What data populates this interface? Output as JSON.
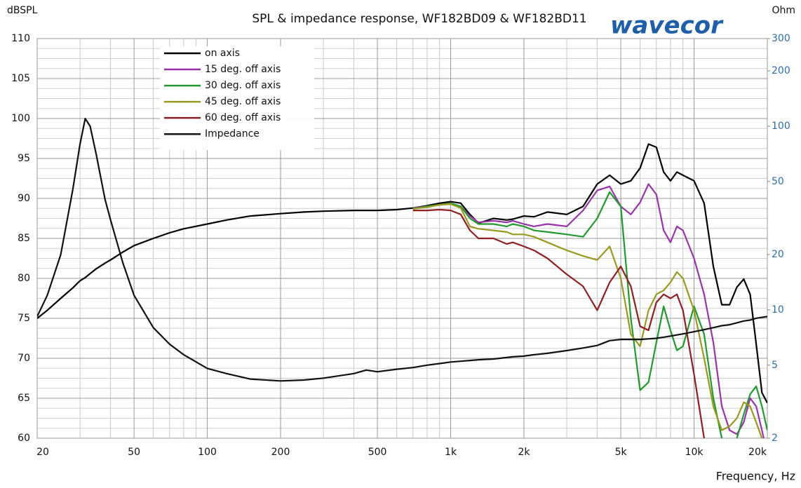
{
  "logo": "wavecor",
  "chart_data": {
    "type": "line",
    "title": "SPL & impedance response, WF182BD09 & WF182BD11",
    "ylabel": "dBSPL",
    "y2label": "Ohm",
    "xlabel": "Frequency, Hz",
    "xlog": true,
    "y2log": true,
    "grid": true,
    "legend": "upper-left",
    "xlim": [
      20,
      20000
    ],
    "xticks": [
      20,
      50,
      100,
      200,
      500,
      {
        "value": 1000,
        "label": "1k"
      },
      {
        "value": 2000,
        "label": "2k"
      },
      {
        "value": 5000,
        "label": "5k"
      },
      {
        "value": 10000,
        "label": "10k"
      },
      {
        "value": 20000,
        "label": "20k"
      }
    ],
    "xminorticks": [
      30,
      40,
      60,
      70,
      80,
      90,
      300,
      400,
      600,
      700,
      800,
      900,
      3000,
      4000,
      6000,
      7000,
      8000,
      9000
    ],
    "ylim": [
      60,
      110
    ],
    "yticks": [
      60,
      65,
      70,
      75,
      80,
      85,
      90,
      95,
      100,
      105,
      110
    ],
    "yminorticks": [
      61.25,
      62.5,
      63.75,
      66.25,
      67.5,
      68.75,
      71.25,
      72.5,
      73.75,
      76.25,
      77.5,
      78.75,
      81.25,
      82.5,
      83.75,
      86.25,
      87.5,
      88.75,
      91.25,
      92.5,
      93.75,
      96.25,
      97.5,
      98.75,
      101.25,
      102.5,
      103.75,
      106.25,
      107.5,
      108.75
    ],
    "y2lim": [
      2,
      300
    ],
    "y2ticks": [
      2,
      5,
      10,
      20,
      50,
      100,
      200,
      300
    ],
    "x": [
      20,
      22,
      25,
      28,
      30,
      31.5,
      33,
      35,
      38,
      40,
      45,
      50,
      60,
      70,
      80,
      100,
      120,
      150,
      200,
      250,
      300,
      400,
      450,
      500,
      600,
      700,
      800,
      900,
      1000,
      1100,
      1200,
      1300,
      1500,
      1700,
      1800,
      2000,
      2200,
      2500,
      3000,
      3500,
      4000,
      4500,
      5000,
      5500,
      6000,
      6500,
      7000,
      7500,
      8000,
      8500,
      9000,
      10000,
      11000,
      12000,
      13000,
      14000,
      15000,
      16000,
      17000,
      18000,
      19000,
      20000
    ],
    "series": [
      {
        "name": "on axis",
        "color": "#000000",
        "values": [
          75,
          76,
          77.5,
          78.8,
          79.7,
          80.1,
          80.6,
          81.2,
          81.9,
          82.3,
          83.3,
          84.1,
          85,
          85.7,
          86.2,
          86.8,
          87.3,
          87.8,
          88.1,
          88.3,
          88.4,
          88.5,
          88.5,
          88.5,
          88.6,
          88.8,
          89.1,
          89.4,
          89.6,
          89.4,
          88,
          86.9,
          87.5,
          87.3,
          87.4,
          87.8,
          87.7,
          88.3,
          88,
          89,
          91.8,
          92.9,
          91.8,
          92.2,
          93.8,
          96.8,
          96.4,
          93.3,
          92.2,
          93.3,
          92.9,
          92.2,
          89.4,
          81.5,
          76.7,
          76.7,
          78.9,
          79.9,
          78,
          71.8,
          65.7,
          64.4
        ]
      },
      {
        "name": "15 deg. off axis",
        "color": "#9933aa",
        "values": [
          null,
          null,
          null,
          null,
          null,
          null,
          null,
          null,
          null,
          null,
          null,
          null,
          null,
          null,
          null,
          null,
          null,
          null,
          null,
          null,
          null,
          null,
          null,
          null,
          null,
          88.8,
          89.0,
          89.2,
          89.3,
          89.0,
          87.8,
          87.0,
          87.2,
          87.0,
          87.2,
          86.8,
          86.5,
          86.8,
          86.5,
          88.5,
          91.0,
          91.5,
          89,
          88,
          89.5,
          91.8,
          90.5,
          86,
          84.5,
          86.5,
          86,
          82.5,
          78,
          72,
          64,
          61,
          60.5,
          62,
          65,
          64,
          61,
          58
        ]
      },
      {
        "name": "30 deg. off axis",
        "color": "#22992e",
        "values": [
          null,
          null,
          null,
          null,
          null,
          null,
          null,
          null,
          null,
          null,
          null,
          null,
          null,
          null,
          null,
          null,
          null,
          null,
          null,
          null,
          null,
          null,
          null,
          null,
          null,
          88.7,
          89,
          89.2,
          89.4,
          89,
          87.5,
          86.8,
          86.8,
          86.5,
          86.8,
          86.5,
          86,
          85.8,
          85.5,
          85.2,
          87.5,
          90.8,
          89,
          75,
          66,
          67,
          72,
          76.5,
          73.5,
          71,
          71.5,
          76.5,
          73,
          65,
          60,
          58,
          60,
          63,
          65.5,
          66.5,
          64,
          61
        ]
      },
      {
        "name": "45 deg. off axis",
        "color": "#999922",
        "values": [
          null,
          null,
          null,
          null,
          null,
          null,
          null,
          null,
          null,
          null,
          null,
          null,
          null,
          null,
          null,
          null,
          null,
          null,
          null,
          null,
          null,
          null,
          null,
          null,
          null,
          88.7,
          88.9,
          89.2,
          89.3,
          88.8,
          86.5,
          86.2,
          86,
          85.8,
          85.5,
          85.5,
          85.2,
          84.5,
          83.5,
          82.8,
          82.3,
          84,
          80,
          73,
          71.5,
          76,
          78,
          78.5,
          79.5,
          80.8,
          80,
          76,
          70,
          64,
          61,
          61.5,
          62.5,
          64.5,
          64,
          62,
          60,
          58
        ]
      },
      {
        "name": "60 deg. off axis",
        "color": "#8e1f22",
        "values": [
          null,
          null,
          null,
          null,
          null,
          null,
          null,
          null,
          null,
          null,
          null,
          null,
          null,
          null,
          null,
          null,
          null,
          null,
          null,
          null,
          null,
          null,
          null,
          null,
          null,
          88.5,
          88.5,
          88.6,
          88.5,
          88,
          86,
          85,
          85,
          84.3,
          84.5,
          84,
          83.5,
          82.5,
          80.5,
          79,
          76,
          79.5,
          81.5,
          79,
          74,
          73.5,
          77,
          78,
          77.5,
          78,
          76,
          68,
          60,
          58,
          58.5,
          59,
          58,
          58,
          58,
          58,
          58,
          58
        ]
      },
      {
        "name": "Impedance",
        "color": "#111111",
        "axis": "y2",
        "values": [
          9.2,
          12,
          20,
          45,
          80,
          110,
          100,
          70,
          40,
          31,
          18,
          12,
          8,
          6.5,
          5.7,
          4.8,
          4.5,
          4.2,
          4.1,
          4.15,
          4.25,
          4.5,
          4.7,
          4.6,
          4.75,
          4.85,
          5,
          5.1,
          5.2,
          5.25,
          5.3,
          5.35,
          5.4,
          5.5,
          5.55,
          5.6,
          5.7,
          5.8,
          6,
          6.2,
          6.4,
          6.8,
          6.9,
          6.9,
          6.9,
          6.95,
          7,
          7.1,
          7.2,
          7.3,
          7.4,
          7.6,
          7.8,
          8,
          8.2,
          8.3,
          8.5,
          8.7,
          8.8,
          9,
          9.1,
          9.2
        ]
      }
    ]
  }
}
